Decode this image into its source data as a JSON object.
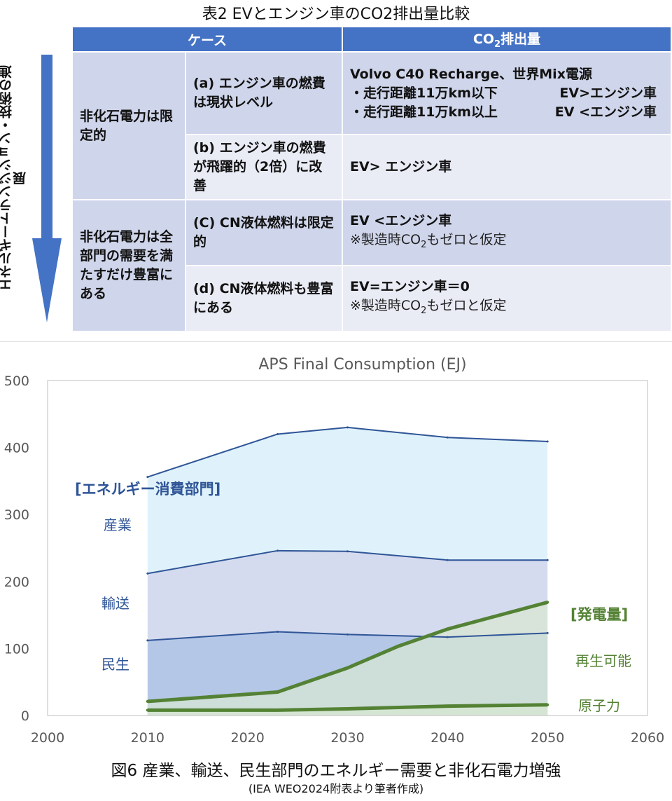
{
  "table": {
    "title": "表2  EVとエンジン車のCO2排出量比較",
    "vertical_label": "エネルギートランジション・技術の進展",
    "header": {
      "case": "ケース",
      "co2_main": "CO",
      "co2_sub": "2",
      "co2_rest": "排出量"
    },
    "groups": [
      {
        "category": "非化石電力は限定的",
        "rows": [
          {
            "case": "(a) エンジン車の燃費は現状レベル",
            "lines": [
              {
                "left": "Volvo C40 Recharge、世界Mix電源",
                "right": ""
              },
              {
                "left": "・走行距離11万km以下",
                "right": "EV>エンジン車"
              },
              {
                "left": "・走行距離11万km以上",
                "right": "EV <エンジン車"
              }
            ]
          },
          {
            "case": "(b) エンジン車の燃費が飛躍的（2倍）に改善",
            "result": "EV> エンジン車"
          }
        ]
      },
      {
        "category": "非化石電力は全部門の需要を満たすだけ豊富にある",
        "rows": [
          {
            "case": "(C) CN液体燃料は限定的",
            "result": "EV <エンジン車",
            "note_pre": "※製造時CO",
            "note_sub": "2",
            "note_post": "もゼロと仮定"
          },
          {
            "case": "(d) CN液体燃料も豊富にある",
            "result": "EV=エンジン車＝0",
            "note_pre": "※製造時CO",
            "note_sub": "2",
            "note_post": "もゼロと仮定"
          }
        ]
      }
    ]
  },
  "chart_data": {
    "type": "line",
    "title": "APS  Final Consumption (EJ)",
    "xlim": [
      2000,
      2060
    ],
    "ylim": [
      0,
      500
    ],
    "x_ticks": [
      "2000",
      "2010",
      "2020",
      "2030",
      "2040",
      "2050",
      "2060"
    ],
    "y_ticks": [
      "0",
      "100",
      "200",
      "300",
      "400",
      "500"
    ],
    "grid": false,
    "consumption_series": [
      {
        "name": "民生",
        "x": [
          2010,
          2023,
          2030,
          2040,
          2050
        ],
        "y": [
          112,
          125,
          121,
          117,
          123
        ]
      },
      {
        "name": "輸送",
        "x": [
          2010,
          2023,
          2030,
          2040,
          2050
        ],
        "y": [
          212,
          246,
          245,
          232,
          232
        ]
      },
      {
        "name": "産業",
        "x": [
          2010,
          2023,
          2030,
          2040,
          2050
        ],
        "y": [
          356,
          420,
          430,
          415,
          409
        ]
      }
    ],
    "generation_series": [
      {
        "name": "原子力",
        "x": [
          2010,
          2023,
          2030,
          2040,
          2050
        ],
        "y": [
          8,
          8,
          10,
          14,
          16
        ]
      },
      {
        "name": "再生可能",
        "x": [
          2010,
          2023,
          2030,
          2035,
          2040,
          2050
        ],
        "y": [
          21,
          35,
          71,
          103,
          129,
          169
        ]
      }
    ],
    "annotations": {
      "sector_header": "[エネルギー消費部門]",
      "generation_header": "[発電量]"
    },
    "colors": {
      "consumption_line": "#2f5597",
      "industry_fill": "#dff2fb",
      "transport_fill": "#d5dbef",
      "residential_fill": "#b4c7e7",
      "generation_line": "#548235",
      "generation_fill": "#d9e8d2"
    }
  },
  "caption": {
    "figure": "図6  産業、輸送、民生部門のエネルギー需要と非化石電力増強",
    "source": "(IEA WEO2024附表より筆者作成)"
  }
}
